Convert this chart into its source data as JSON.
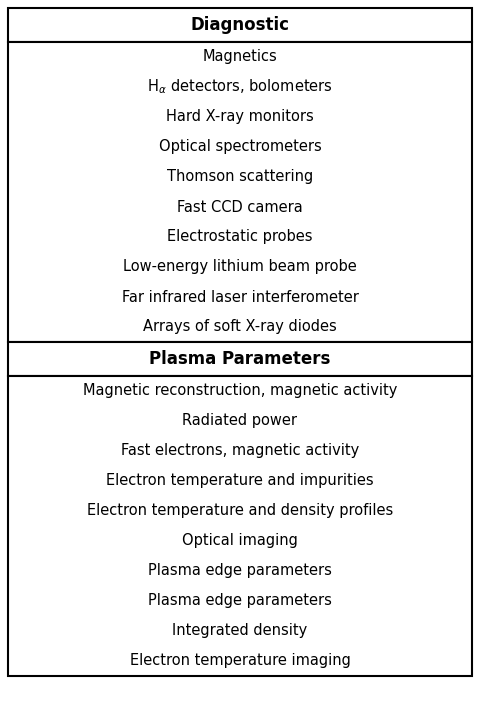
{
  "header1": "Diagnostic",
  "header2": "Plasma Parameters",
  "col1_items": [
    "Magnetics",
    "H$_{\\alpha}$ detectors, bolometers",
    "Hard X-ray monitors",
    "Optical spectrometers",
    "Thomson scattering",
    "Fast CCD camera",
    "Electrostatic probes",
    "Low-energy lithium beam probe",
    "Far infrared laser interferometer",
    "Arrays of soft X-ray diodes"
  ],
  "col2_items": [
    "Magnetic reconstruction, magnetic activity",
    "Radiated power",
    "Fast electrons, magnetic activity",
    "Electron temperature and impurities",
    "Electron temperature and density profiles",
    "Optical imaging",
    "Plasma edge parameters",
    "Plasma edge parameters",
    "Integrated density",
    "Electron temperature imaging"
  ],
  "bg_color": "#ffffff",
  "text_color": "#000000",
  "border_color": "#000000",
  "header_fontsize": 12,
  "item_fontsize": 10.5,
  "figsize": [
    4.8,
    7.08
  ],
  "dpi": 100
}
